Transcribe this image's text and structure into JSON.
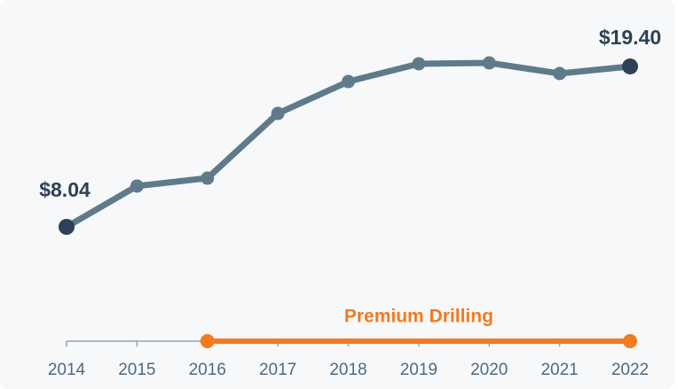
{
  "chart_data": {
    "type": "line",
    "categories": [
      "2014",
      "2015",
      "2016",
      "2017",
      "2018",
      "2019",
      "2020",
      "2021",
      "2022"
    ],
    "series": [
      {
        "color": "#5f7b8a",
        "values": [
          8.04,
          10.93,
          11.49,
          16.07,
          18.33,
          19.59,
          19.65,
          18.9,
          19.4
        ],
        "value_labels": [
          "$8.04",
          null,
          null,
          null,
          null,
          null,
          null,
          null,
          "$19.40"
        ],
        "label_color": "#2e4157"
      }
    ],
    "annotation": {
      "text": "Premium Drilling",
      "start": "2016",
      "end": "2022",
      "color": "#f47a1f"
    }
  }
}
